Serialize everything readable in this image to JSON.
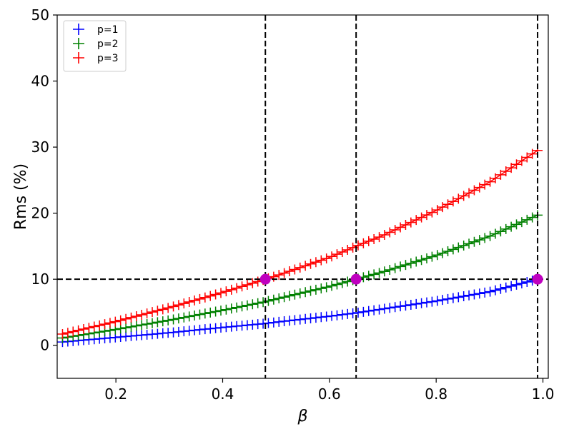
{
  "chart_data": {
    "type": "scatter",
    "xlabel": "β",
    "ylabel": "Rms (%)",
    "xlim": [
      0.09,
      1.01
    ],
    "ylim": [
      -5,
      50
    ],
    "xticks": [
      0.2,
      0.4,
      0.6,
      0.8,
      1.0
    ],
    "xtick_labels": [
      "0.2",
      "0.4",
      "0.6",
      "0.8",
      "1.0"
    ],
    "yticks": [
      0,
      10,
      20,
      30,
      40,
      50
    ],
    "ytick_labels": [
      "0",
      "10",
      "20",
      "30",
      "40",
      "50"
    ],
    "legend_position": "top-left",
    "grid": false,
    "marker": "plus",
    "x_range_of_points": [
      0.1,
      0.99
    ],
    "series": [
      {
        "name": "p=1",
        "color": "#0000ff",
        "x": [
          0.1,
          0.2,
          0.3,
          0.4,
          0.48,
          0.5,
          0.6,
          0.65,
          0.7,
          0.8,
          0.9,
          0.99
        ],
        "values": [
          0.5,
          1.2,
          1.9,
          2.7,
          3.3,
          3.5,
          4.4,
          4.9,
          5.5,
          6.7,
          8.1,
          10.0
        ]
      },
      {
        "name": "p=2",
        "color": "#008000",
        "x": [
          0.1,
          0.2,
          0.3,
          0.4,
          0.48,
          0.5,
          0.6,
          0.65,
          0.7,
          0.8,
          0.9,
          0.99
        ],
        "values": [
          1.1,
          2.4,
          3.8,
          5.3,
          6.6,
          7.0,
          8.9,
          10.0,
          11.1,
          13.6,
          16.5,
          19.7
        ]
      },
      {
        "name": "p=3",
        "color": "#ff0000",
        "x": [
          0.1,
          0.2,
          0.3,
          0.4,
          0.48,
          0.5,
          0.6,
          0.65,
          0.7,
          0.8,
          0.9,
          0.99
        ],
        "values": [
          1.7,
          3.6,
          5.7,
          8.0,
          10.0,
          10.5,
          13.3,
          15.0,
          16.6,
          20.4,
          24.7,
          29.5
        ]
      }
    ],
    "hlines": [
      10
    ],
    "vlines": [
      0.48,
      0.65,
      0.99
    ],
    "highlight_points": {
      "color": "#bf00bf",
      "x": [
        0.48,
        0.65,
        0.99
      ],
      "y": [
        10,
        10,
        10
      ]
    }
  }
}
